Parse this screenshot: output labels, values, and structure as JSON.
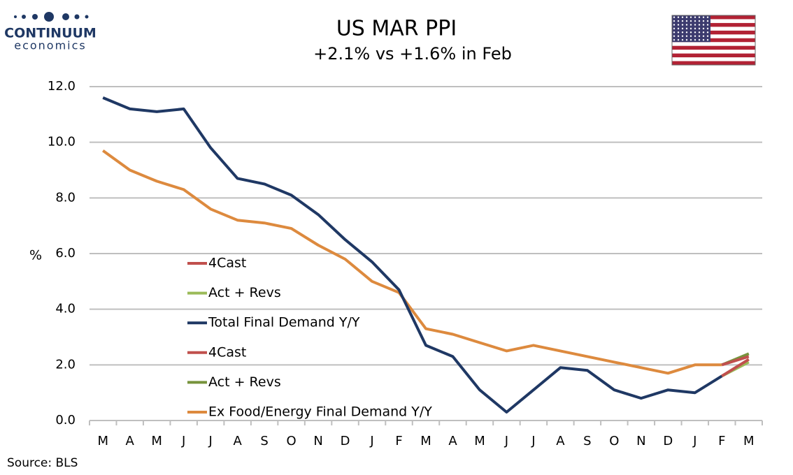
{
  "chart_data": {
    "type": "line",
    "title": "US MAR PPI",
    "subtitle": "+2.1% vs +1.6% in Feb",
    "y_label": "%",
    "source": "Source: BLS",
    "brand": {
      "name": "CONTINUUM",
      "tagline": "economics"
    },
    "categories": [
      "M",
      "A",
      "M",
      "J",
      "J",
      "A",
      "S",
      "O",
      "N",
      "D",
      "J",
      "F",
      "M",
      "A",
      "M",
      "J",
      "J",
      "A",
      "S",
      "O",
      "N",
      "D",
      "J",
      "F",
      "M"
    ],
    "series": [
      {
        "name": "4Cast",
        "color": "#c0504d",
        "values": [
          null,
          null,
          null,
          null,
          null,
          null,
          null,
          null,
          null,
          null,
          null,
          null,
          null,
          null,
          null,
          null,
          null,
          null,
          null,
          null,
          null,
          null,
          null,
          1.6,
          2.2
        ]
      },
      {
        "name": "Act + Revs",
        "color": "#9bbb59",
        "values": [
          null,
          null,
          null,
          null,
          null,
          null,
          null,
          null,
          null,
          null,
          null,
          null,
          null,
          null,
          null,
          null,
          null,
          null,
          null,
          null,
          null,
          null,
          null,
          1.6,
          2.1
        ]
      },
      {
        "name": "Total Final Demand Y/Y",
        "color": "#1f3864",
        "values": [
          11.6,
          11.2,
          11.1,
          11.2,
          9.8,
          8.7,
          8.5,
          8.1,
          7.4,
          6.5,
          5.7,
          4.7,
          2.7,
          2.3,
          1.1,
          0.3,
          1.1,
          1.9,
          1.8,
          1.1,
          0.8,
          1.1,
          1.0,
          1.6,
          null
        ]
      },
      {
        "name": "4Cast",
        "color": "#c0504d",
        "values": [
          null,
          null,
          null,
          null,
          null,
          null,
          null,
          null,
          null,
          null,
          null,
          null,
          null,
          null,
          null,
          null,
          null,
          null,
          null,
          null,
          null,
          null,
          null,
          2.0,
          2.3
        ]
      },
      {
        "name": "Act + Revs",
        "color": "#77933c",
        "values": [
          null,
          null,
          null,
          null,
          null,
          null,
          null,
          null,
          null,
          null,
          null,
          null,
          null,
          null,
          null,
          null,
          null,
          null,
          null,
          null,
          null,
          null,
          null,
          2.0,
          2.4
        ]
      },
      {
        "name": "Ex Food/Energy Final Demand Y/Y",
        "color": "#dd8a3e",
        "values": [
          9.7,
          9.0,
          8.6,
          8.3,
          7.6,
          7.2,
          7.1,
          6.9,
          6.3,
          5.8,
          5.0,
          4.6,
          3.3,
          3.1,
          2.8,
          2.5,
          2.7,
          2.5,
          2.3,
          2.1,
          1.9,
          1.7,
          2.0,
          2.0,
          null
        ]
      }
    ],
    "ylim": [
      0,
      12
    ],
    "yticks": [
      {
        "value": 0,
        "label": "0.0"
      },
      {
        "value": 2,
        "label": "2.0"
      },
      {
        "value": 4,
        "label": "4.0"
      },
      {
        "value": 6,
        "label": "6.0"
      },
      {
        "value": 8,
        "label": "8.0"
      },
      {
        "value": 10,
        "label": "10.0"
      },
      {
        "value": 12,
        "label": "12.0"
      }
    ],
    "grid": true
  }
}
